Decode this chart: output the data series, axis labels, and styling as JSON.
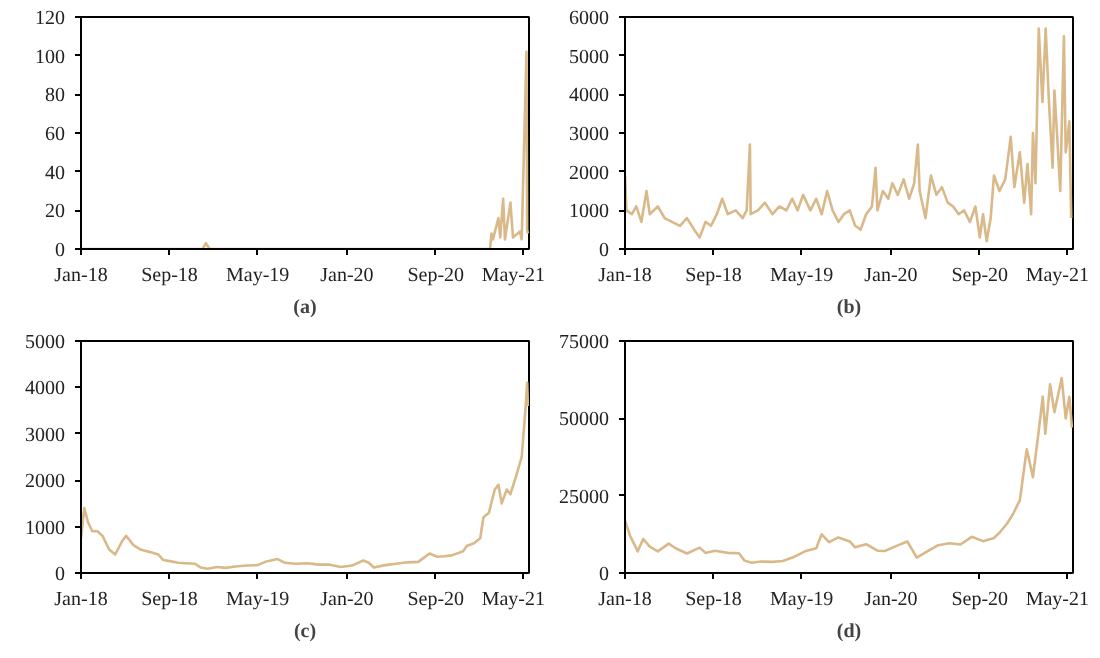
{
  "chart_data": [
    {
      "type": "line",
      "xlabel": "(a)",
      "grid": false,
      "color": "#d9b98a",
      "xlim": [
        "2018-01-01",
        "2021-05-15"
      ],
      "ylim": [
        0,
        120
      ],
      "yticks": [
        0,
        20,
        40,
        60,
        80,
        100,
        120
      ],
      "xticks": [
        {
          "value": "2018-01-01",
          "label": "Jan-18"
        },
        {
          "value": "2018-09-01",
          "label": "Sep-18"
        },
        {
          "value": "2019-05-01",
          "label": "May-19"
        },
        {
          "value": "2020-01-01",
          "label": "Jan-20"
        },
        {
          "value": "2020-09-01",
          "label": "Sep-20"
        },
        {
          "value": "2021-05-01",
          "label": "May-21"
        }
      ],
      "x": [
        "2018-01-01",
        "2018-09-01",
        "2018-12-01",
        "2018-12-10",
        "2018-12-20",
        "2020-12-31",
        "2021-01-28",
        "2021-02-01",
        "2021-02-05",
        "2021-02-20",
        "2021-02-25",
        "2021-03-05",
        "2021-03-10",
        "2021-03-25",
        "2021-04-01",
        "2021-04-20",
        "2021-04-25",
        "2021-05-08",
        "2021-05-10",
        "2021-05-12"
      ],
      "values": [
        0,
        0,
        0,
        3,
        0,
        0,
        0,
        8,
        5,
        16,
        6,
        26,
        5,
        24,
        6,
        9,
        5,
        102,
        10,
        8
      ]
    },
    {
      "type": "line",
      "xlabel": "(b)",
      "grid": false,
      "color": "#d9b98a",
      "xlim": [
        "2018-01-01",
        "2021-05-15"
      ],
      "ylim": [
        0,
        6000
      ],
      "yticks": [
        0,
        1000,
        2000,
        3000,
        4000,
        5000,
        6000
      ],
      "xticks": [
        {
          "value": "2018-01-01",
          "label": "Jan-18"
        },
        {
          "value": "2018-09-01",
          "label": "Sep-18"
        },
        {
          "value": "2019-05-01",
          "label": "May-19"
        },
        {
          "value": "2020-01-01",
          "label": "Jan-20"
        },
        {
          "value": "2020-09-01",
          "label": "Sep-20"
        },
        {
          "value": "2021-05-01",
          "label": "May-21"
        }
      ],
      "x": [
        "2018-01-01",
        "2018-01-05",
        "2018-01-20",
        "2018-02-01",
        "2018-02-15",
        "2018-03-01",
        "2018-03-10",
        "2018-04-01",
        "2018-04-20",
        "2018-05-10",
        "2018-06-01",
        "2018-06-20",
        "2018-07-10",
        "2018-07-25",
        "2018-08-10",
        "2018-08-25",
        "2018-09-10",
        "2018-09-25",
        "2018-10-10",
        "2018-11-01",
        "2018-11-20",
        "2018-12-01",
        "2018-12-10",
        "2018-12-12",
        "2019-01-01",
        "2019-01-20",
        "2019-02-10",
        "2019-03-01",
        "2019-03-20",
        "2019-04-05",
        "2019-04-20",
        "2019-05-05",
        "2019-05-25",
        "2019-06-10",
        "2019-06-25",
        "2019-07-10",
        "2019-07-25",
        "2019-08-10",
        "2019-08-25",
        "2019-09-10",
        "2019-09-25",
        "2019-10-10",
        "2019-10-25",
        "2019-11-10",
        "2019-11-20",
        "2019-11-25",
        "2019-12-10",
        "2019-12-25",
        "2020-01-05",
        "2020-01-20",
        "2020-02-05",
        "2020-02-20",
        "2020-03-05",
        "2020-03-15",
        "2020-03-20",
        "2020-04-05",
        "2020-04-20",
        "2020-05-05",
        "2020-05-20",
        "2020-06-05",
        "2020-06-20",
        "2020-07-05",
        "2020-07-20",
        "2020-08-05",
        "2020-08-20",
        "2020-09-01",
        "2020-09-10",
        "2020-09-20",
        "2020-10-01",
        "2020-10-10",
        "2020-10-25",
        "2020-11-10",
        "2020-11-25",
        "2020-12-05",
        "2020-12-20",
        "2021-01-01",
        "2021-01-10",
        "2021-01-20",
        "2021-01-25",
        "2021-02-01",
        "2021-02-10",
        "2021-02-20",
        "2021-03-01",
        "2021-03-10",
        "2021-03-20",
        "2021-03-25",
        "2021-04-01",
        "2021-04-10",
        "2021-04-20",
        "2021-04-25",
        "2021-05-05",
        "2021-05-10"
      ],
      "values": [
        1900,
        1000,
        900,
        1100,
        700,
        1500,
        900,
        1100,
        800,
        700,
        600,
        800,
        500,
        300,
        700,
        600,
        900,
        1300,
        900,
        1000,
        800,
        1000,
        2700,
        900,
        1000,
        1200,
        900,
        1100,
        1000,
        1300,
        1000,
        1400,
        1000,
        1300,
        900,
        1500,
        1000,
        700,
        900,
        1000,
        600,
        500,
        900,
        1100,
        2100,
        1000,
        1500,
        1300,
        1700,
        1400,
        1800,
        1300,
        1700,
        2700,
        1500,
        800,
        1900,
        1400,
        1600,
        1200,
        1100,
        900,
        1000,
        700,
        1100,
        300,
        900,
        200,
        800,
        1900,
        1500,
        1800,
        2900,
        1600,
        2500,
        1200,
        2200,
        900,
        3000,
        1700,
        5700,
        3800,
        5700,
        3800,
        2100,
        4100,
        3000,
        1500,
        5500,
        2500,
        3300,
        800
      ]
    },
    {
      "type": "line",
      "xlabel": "(c)",
      "grid": false,
      "color": "#d9b98a",
      "xlim": [
        "2018-01-01",
        "2021-05-15"
      ],
      "ylim": [
        0,
        5000
      ],
      "yticks": [
        0,
        1000,
        2000,
        3000,
        4000,
        5000
      ],
      "xticks": [
        {
          "value": "2018-01-01",
          "label": "Jan-18"
        },
        {
          "value": "2018-09-01",
          "label": "Sep-18"
        },
        {
          "value": "2019-05-01",
          "label": "May-19"
        },
        {
          "value": "2020-01-01",
          "label": "Jan-20"
        },
        {
          "value": "2020-09-01",
          "label": "Sep-20"
        },
        {
          "value": "2021-05-01",
          "label": "May-21"
        }
      ],
      "x": [
        "2018-01-01",
        "2018-01-10",
        "2018-01-20",
        "2018-02-01",
        "2018-02-15",
        "2018-03-01",
        "2018-03-20",
        "2018-04-05",
        "2018-04-25",
        "2018-05-05",
        "2018-05-25",
        "2018-06-15",
        "2018-07-10",
        "2018-08-01",
        "2018-08-15",
        "2018-09-05",
        "2018-09-25",
        "2018-10-15",
        "2018-11-10",
        "2018-11-25",
        "2018-12-15",
        "2019-01-10",
        "2019-02-01",
        "2019-03-01",
        "2019-04-01",
        "2019-05-01",
        "2019-05-25",
        "2019-06-25",
        "2019-07-15",
        "2019-08-15",
        "2019-09-15",
        "2019-10-15",
        "2019-11-15",
        "2019-12-15",
        "2020-01-15",
        "2020-02-15",
        "2020-03-01",
        "2020-03-15",
        "2020-04-15",
        "2020-05-15",
        "2020-06-15",
        "2020-07-15",
        "2020-08-15",
        "2020-09-05",
        "2020-09-25",
        "2020-10-15",
        "2020-11-15",
        "2020-11-25",
        "2020-12-15",
        "2021-01-01",
        "2021-01-10",
        "2021-01-25",
        "2021-02-10",
        "2021-02-20",
        "2021-03-01",
        "2021-03-15",
        "2021-03-25",
        "2021-04-10",
        "2021-04-25",
        "2021-05-05",
        "2021-05-10",
        "2021-05-12"
      ],
      "values": [
        750,
        1400,
        1100,
        900,
        900,
        800,
        500,
        400,
        700,
        800,
        600,
        500,
        450,
        400,
        280,
        250,
        220,
        210,
        200,
        120,
        90,
        130,
        110,
        140,
        160,
        170,
        250,
        300,
        220,
        200,
        210,
        180,
        180,
        130,
        160,
        270,
        220,
        120,
        170,
        200,
        230,
        240,
        420,
        350,
        360,
        380,
        470,
        580,
        640,
        750,
        1200,
        1300,
        1800,
        1900,
        1500,
        1800,
        1700,
        2100,
        2500,
        3500,
        4100,
        3600
      ]
    },
    {
      "type": "line",
      "xlabel": "(d)",
      "grid": false,
      "color": "#d9b98a",
      "xlim": [
        "2018-01-01",
        "2021-05-15"
      ],
      "ylim": [
        0,
        75000
      ],
      "yticks": [
        0,
        25000,
        50000,
        75000
      ],
      "xticks": [
        {
          "value": "2018-01-01",
          "label": "Jan-18"
        },
        {
          "value": "2018-09-01",
          "label": "Sep-18"
        },
        {
          "value": "2019-05-01",
          "label": "May-19"
        },
        {
          "value": "2020-01-01",
          "label": "Jan-20"
        },
        {
          "value": "2020-09-01",
          "label": "Sep-20"
        },
        {
          "value": "2021-05-01",
          "label": "May-21"
        }
      ],
      "x": [
        "2018-01-01",
        "2018-01-15",
        "2018-02-05",
        "2018-02-20",
        "2018-03-10",
        "2018-04-01",
        "2018-05-01",
        "2018-05-20",
        "2018-06-20",
        "2018-07-25",
        "2018-08-10",
        "2018-09-05",
        "2018-10-10",
        "2018-11-10",
        "2018-11-25",
        "2018-12-15",
        "2019-01-10",
        "2019-02-10",
        "2019-03-10",
        "2019-04-10",
        "2019-05-10",
        "2019-06-10",
        "2019-06-25",
        "2019-07-15",
        "2019-08-10",
        "2019-09-10",
        "2019-09-25",
        "2019-10-25",
        "2019-11-25",
        "2019-12-15",
        "2020-01-15",
        "2020-02-15",
        "2020-03-12",
        "2020-04-10",
        "2020-05-10",
        "2020-06-10",
        "2020-07-10",
        "2020-08-10",
        "2020-09-10",
        "2020-10-10",
        "2020-10-25",
        "2020-11-15",
        "2020-12-01",
        "2020-12-20",
        "2021-01-08",
        "2021-01-25",
        "2021-02-10",
        "2021-02-21",
        "2021-02-28",
        "2021-03-13",
        "2021-03-25",
        "2021-04-14",
        "2021-04-25",
        "2021-05-05",
        "2021-05-12"
      ],
      "values": [
        17000,
        12000,
        7000,
        11000,
        8500,
        7000,
        9500,
        8000,
        6300,
        8200,
        6500,
        7200,
        6500,
        6400,
        4000,
        3300,
        3700,
        3600,
        3900,
        5200,
        7000,
        8000,
        12500,
        10000,
        11500,
        10200,
        8300,
        9300,
        7200,
        7100,
        8700,
        10200,
        5000,
        7000,
        9000,
        9600,
        9200,
        11700,
        10300,
        11300,
        13000,
        16000,
        19000,
        23500,
        40000,
        31000,
        46000,
        57000,
        45000,
        61000,
        52000,
        63000,
        50000,
        57000,
        47000
      ]
    }
  ]
}
